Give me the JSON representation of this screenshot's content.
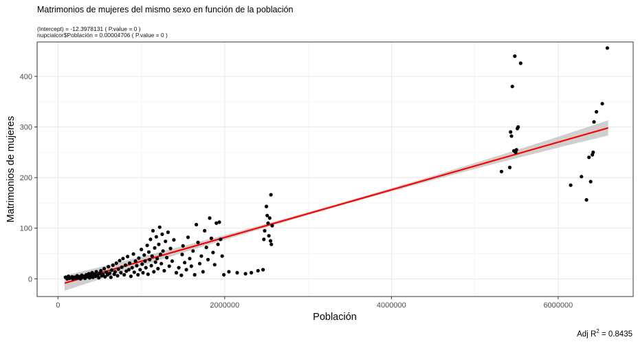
{
  "chart_data": {
    "type": "scatter",
    "title": "Matrimonios de mujeres del mismo sexo en función de la población",
    "subtitle_lines": [
      "(Intercept) = -12.3978131 ( P.value = 0 )",
      "nupcialcor$Población = 0.00004706 ( P.value = 0 )"
    ],
    "xlabel": "Población",
    "ylabel": "Matrimonios de mujeres",
    "caption_prefix": "Adj R",
    "caption_sup": "2",
    "caption_suffix": " = 0.8435",
    "xlim": [
      -250000,
      6900000
    ],
    "ylim": [
      -35,
      468
    ],
    "xticks": [
      0,
      2000000,
      4000000,
      6000000
    ],
    "xtick_labels": [
      "0",
      "2000000",
      "4000000",
      "6000000"
    ],
    "yticks": [
      0,
      100,
      200,
      300,
      400
    ],
    "ytick_labels": [
      "0",
      "100",
      "200",
      "300",
      "400"
    ],
    "grid": true,
    "regression": {
      "intercept": -12.3978131,
      "slope": 4.706e-05,
      "x_range": [
        80000,
        6600000
      ],
      "color": "#ff0000",
      "band_color": "#bfbfbf"
    },
    "points": [
      [
        90000,
        3
      ],
      [
        110000,
        0
      ],
      [
        125000,
        5
      ],
      [
        140000,
        1
      ],
      [
        150000,
        2
      ],
      [
        170000,
        4
      ],
      [
        180000,
        0
      ],
      [
        200000,
        3
      ],
      [
        215000,
        1
      ],
      [
        230000,
        6
      ],
      [
        240000,
        2
      ],
      [
        255000,
        4
      ],
      [
        270000,
        0
      ],
      [
        285000,
        7
      ],
      [
        300000,
        3
      ],
      [
        310000,
        5
      ],
      [
        325000,
        1
      ],
      [
        340000,
        8
      ],
      [
        355000,
        4
      ],
      [
        370000,
        10
      ],
      [
        380000,
        2
      ],
      [
        395000,
        6
      ],
      [
        410000,
        12
      ],
      [
        420000,
        3
      ],
      [
        435000,
        9
      ],
      [
        450000,
        5
      ],
      [
        460000,
        14
      ],
      [
        475000,
        7
      ],
      [
        490000,
        2
      ],
      [
        500000,
        11
      ],
      [
        515000,
        16
      ],
      [
        525000,
        6
      ],
      [
        540000,
        9
      ],
      [
        555000,
        20
      ],
      [
        565000,
        4
      ],
      [
        580000,
        13
      ],
      [
        595000,
        8
      ],
      [
        605000,
        24
      ],
      [
        620000,
        11
      ],
      [
        635000,
        3
      ],
      [
        645000,
        17
      ],
      [
        660000,
        27
      ],
      [
        675000,
        9
      ],
      [
        685000,
        14
      ],
      [
        700000,
        31
      ],
      [
        715000,
        6
      ],
      [
        725000,
        19
      ],
      [
        740000,
        36
      ],
      [
        755000,
        12
      ],
      [
        765000,
        23
      ],
      [
        780000,
        40
      ],
      [
        795000,
        8
      ],
      [
        810000,
        27
      ],
      [
        820000,
        15
      ],
      [
        835000,
        44
      ],
      [
        850000,
        18
      ],
      [
        860000,
        31
      ],
      [
        875000,
        5
      ],
      [
        890000,
        22
      ],
      [
        905000,
        49
      ],
      [
        915000,
        13
      ],
      [
        930000,
        35
      ],
      [
        945000,
        26
      ],
      [
        960000,
        8
      ],
      [
        970000,
        41
      ],
      [
        985000,
        18
      ],
      [
        1000000,
        58
      ],
      [
        1010000,
        29
      ],
      [
        1020000,
        12
      ],
      [
        1035000,
        47
      ],
      [
        1045000,
        35
      ],
      [
        1055000,
        22
      ],
      [
        1070000,
        66
      ],
      [
        1080000,
        9
      ],
      [
        1090000,
        53
      ],
      [
        1100000,
        38
      ],
      [
        1110000,
        78
      ],
      [
        1120000,
        26
      ],
      [
        1130000,
        45
      ],
      [
        1140000,
        95
      ],
      [
        1150000,
        14
      ],
      [
        1160000,
        61
      ],
      [
        1170000,
        33
      ],
      [
        1180000,
        83
      ],
      [
        1190000,
        40
      ],
      [
        1200000,
        20
      ],
      [
        1210000,
        68
      ],
      [
        1220000,
        102
      ],
      [
        1230000,
        48
      ],
      [
        1240000,
        30
      ],
      [
        1250000,
        88
      ],
      [
        1260000,
        55
      ],
      [
        1275000,
        16
      ],
      [
        1290000,
        74
      ],
      [
        1305000,
        42
      ],
      [
        1320000,
        92
      ],
      [
        1335000,
        25
      ],
      [
        1350000,
        60
      ],
      [
        1370000,
        35
      ],
      [
        1390000,
        77
      ],
      [
        1420000,
        12
      ],
      [
        1450000,
        22
      ],
      [
        1480000,
        7
      ],
      [
        1490000,
        48
      ],
      [
        1500000,
        65
      ],
      [
        1520000,
        32
      ],
      [
        1540000,
        18
      ],
      [
        1560000,
        82
      ],
      [
        1580000,
        40
      ],
      [
        1600000,
        25
      ],
      [
        1620000,
        55
      ],
      [
        1640000,
        8
      ],
      [
        1660000,
        107
      ],
      [
        1680000,
        72
      ],
      [
        1700000,
        30
      ],
      [
        1720000,
        45
      ],
      [
        1740000,
        14
      ],
      [
        1760000,
        95
      ],
      [
        1780000,
        62
      ],
      [
        1800000,
        38
      ],
      [
        1820000,
        120
      ],
      [
        1840000,
        80
      ],
      [
        1860000,
        52
      ],
      [
        1880000,
        28
      ],
      [
        1900000,
        110
      ],
      [
        1920000,
        68
      ],
      [
        1935000,
        112
      ],
      [
        1950000,
        78
      ],
      [
        1970000,
        45
      ],
      [
        1990000,
        8
      ],
      [
        2050000,
        14
      ],
      [
        2150000,
        12
      ],
      [
        2250000,
        10
      ],
      [
        2320000,
        12
      ],
      [
        2400000,
        16
      ],
      [
        2460000,
        18
      ],
      [
        2470000,
        78
      ],
      [
        2480000,
        95
      ],
      [
        2500000,
        143
      ],
      [
        2510000,
        125
      ],
      [
        2520000,
        110
      ],
      [
        2530000,
        85
      ],
      [
        2540000,
        120
      ],
      [
        2550000,
        75
      ],
      [
        2555000,
        166
      ],
      [
        2560000,
        68
      ],
      [
        2570000,
        105
      ],
      [
        5320000,
        212
      ],
      [
        5420000,
        220
      ],
      [
        5430000,
        290
      ],
      [
        5440000,
        282
      ],
      [
        5450000,
        380
      ],
      [
        5470000,
        253
      ],
      [
        5480000,
        440
      ],
      [
        5490000,
        250
      ],
      [
        5500000,
        255
      ],
      [
        5510000,
        297
      ],
      [
        5520000,
        300
      ],
      [
        5550000,
        426
      ],
      [
        6150000,
        185
      ],
      [
        6280000,
        202
      ],
      [
        6340000,
        156
      ],
      [
        6370000,
        240
      ],
      [
        6390000,
        192
      ],
      [
        6410000,
        245
      ],
      [
        6420000,
        250
      ],
      [
        6430000,
        310
      ],
      [
        6460000,
        330
      ],
      [
        6530000,
        346
      ],
      [
        6590000,
        456
      ]
    ]
  }
}
